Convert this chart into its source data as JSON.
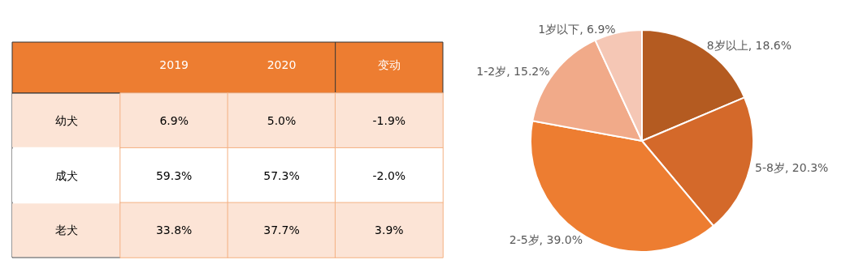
{
  "chart_data": [
    {
      "type": "heatmap",
      "categories": [
        "2019",
        "2020",
        "变动"
      ],
      "y_categories": [
        "幼犬",
        "成犬",
        "老犬"
      ],
      "cells": [
        [
          6.9,
          5.0,
          -1.9
        ],
        [
          59.3,
          57.3,
          -2.0
        ],
        [
          33.8,
          37.7,
          3.9
        ]
      ],
      "cell_labels": [
        [
          "6.9%",
          "5.0%",
          "-1.9%"
        ],
        [
          "59.3%",
          "57.3%",
          "-2.0%"
        ],
        [
          "33.8%",
          "37.7%",
          "3.9%"
        ]
      ]
    },
    {
      "type": "pie",
      "categories": [
        "8岁以上",
        "5-8岁",
        "2-5岁",
        "1-2岁",
        "1岁以下"
      ],
      "values": [
        18.6,
        20.3,
        39.0,
        15.2,
        6.9
      ],
      "value_labels": [
        "18.6%",
        "20.3%",
        "39.0%",
        "15.2%",
        "6.9%"
      ],
      "colors": [
        "#b45b21",
        "#d4692a",
        "#ed7d31",
        "#f1aa89",
        "#f5c7b5"
      ]
    }
  ]
}
